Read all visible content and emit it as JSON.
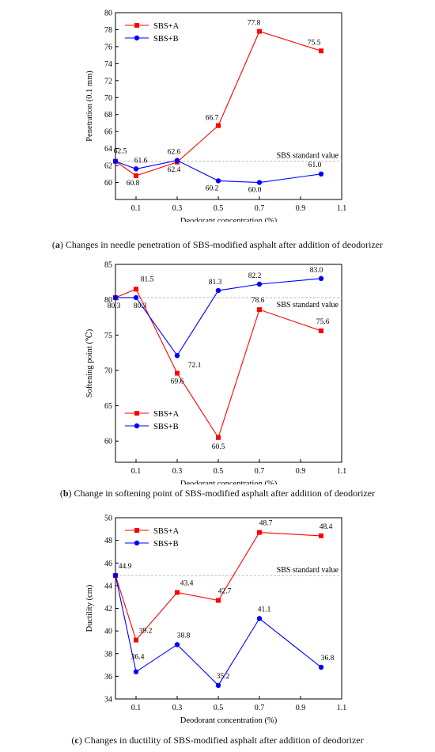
{
  "colors": {
    "series_a": "#ff0000",
    "series_b": "#0000ff",
    "standard_line": "#bbbbbb"
  },
  "captions": {
    "a": {
      "letter": "a",
      "text": " Changes in needle penetration of SBS-modified asphalt after addition of deodorizer"
    },
    "b": {
      "letter": "b",
      "text": " Change in softening point of SBS-modified asphalt after addition of deodorizer"
    },
    "c": {
      "letter": "c",
      "text": " Changes in ductility of SBS-modified asphalt after addition of deodorizer"
    }
  },
  "chart_data": [
    {
      "type": "line",
      "xlabel": "Deodorant concentration (%)",
      "ylabel": "Penetration (0.1 mm)",
      "xlim": [
        0,
        1.1
      ],
      "ylim": [
        58,
        80
      ],
      "x": [
        0,
        0.1,
        0.3,
        0.5,
        0.7,
        1.0
      ],
      "xticks": [
        0.1,
        0.3,
        0.5,
        0.7,
        0.9,
        1.1
      ],
      "yticks": [
        60,
        62,
        64,
        66,
        68,
        70,
        72,
        74,
        76,
        78,
        80
      ],
      "legend": "top-left",
      "standard": {
        "value": 62.5,
        "label": "SBS standard value"
      },
      "series": [
        {
          "name": "SBS+A",
          "values": [
            62.5,
            60.8,
            62.4,
            66.7,
            77.8,
            75.5
          ],
          "labels": [
            "62.5",
            "60.8",
            "62.4",
            "66.7",
            "77.8",
            "75.5"
          ]
        },
        {
          "name": "SBS+B",
          "values": [
            62.5,
            61.6,
            62.6,
            60.2,
            60.0,
            61.0
          ],
          "labels": [
            "",
            "61.6",
            "62.6",
            "60.2",
            "60.0",
            "61.0"
          ]
        }
      ]
    },
    {
      "type": "line",
      "xlabel": "Deodorant concentration (%)",
      "ylabel": "Softening point (℃)",
      "xlim": [
        0,
        1.1
      ],
      "ylim": [
        57,
        85
      ],
      "x": [
        0,
        0.1,
        0.3,
        0.5,
        0.7,
        1.0
      ],
      "xticks": [
        0.1,
        0.3,
        0.5,
        0.7,
        0.9,
        1.1
      ],
      "yticks": [
        60,
        65,
        70,
        75,
        80,
        85
      ],
      "legend": "bottom-left",
      "standard": {
        "value": 80.3,
        "label": "SBS standard value"
      },
      "series": [
        {
          "name": "SBS+A",
          "values": [
            80.3,
            81.5,
            69.6,
            60.5,
            78.6,
            75.6
          ],
          "labels": [
            "",
            "81.5",
            "69.6",
            "60.5",
            "78.6",
            "75.6"
          ]
        },
        {
          "name": "SBS+B",
          "values": [
            80.3,
            80.3,
            72.1,
            81.3,
            82.2,
            83.0
          ],
          "labels": [
            "80.3",
            "80.3",
            "72.1",
            "81.3",
            "82.2",
            "83.0"
          ]
        }
      ]
    },
    {
      "type": "line",
      "xlabel": "Deodorant concentration (%)",
      "ylabel": "Ductility (cm)",
      "xlim": [
        0,
        1.1
      ],
      "ylim": [
        34,
        50
      ],
      "x": [
        0,
        0.1,
        0.3,
        0.5,
        0.7,
        1.0
      ],
      "xticks": [
        0.1,
        0.3,
        0.5,
        0.7,
        0.9,
        1.1
      ],
      "yticks": [
        34,
        36,
        38,
        40,
        42,
        44,
        46,
        48,
        50
      ],
      "legend": "top-left",
      "standard": {
        "value": 44.9,
        "label": "SBS standard value"
      },
      "series": [
        {
          "name": "SBS+A",
          "values": [
            44.9,
            39.2,
            43.4,
            42.7,
            48.7,
            48.4
          ],
          "labels": [
            "44.9",
            "39.2",
            "43.4",
            "42.7",
            "48.7",
            "48.4"
          ]
        },
        {
          "name": "SBS+B",
          "values": [
            44.9,
            36.4,
            38.8,
            35.2,
            41.1,
            36.8
          ],
          "labels": [
            "",
            "36.4",
            "38.8",
            "35.2",
            "41.1",
            "36.8"
          ]
        }
      ]
    }
  ]
}
